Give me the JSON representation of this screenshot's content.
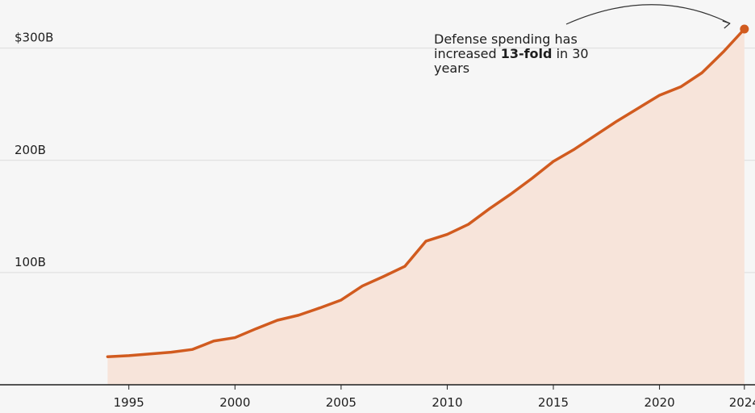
{
  "chart_data": {
    "type": "area",
    "title": "",
    "xlabel": "",
    "ylabel": "",
    "x": [
      1994,
      1995,
      1996,
      1997,
      1998,
      1999,
      2000,
      2001,
      2002,
      2003,
      2004,
      2005,
      2006,
      2007,
      2008,
      2009,
      2010,
      2011,
      2012,
      2013,
      2014,
      2015,
      2016,
      2017,
      2018,
      2019,
      2020,
      2021,
      2022,
      2023,
      2024
    ],
    "series": [
      {
        "name": "",
        "values": [
          25,
          26,
          27.5,
          29,
          31.5,
          39,
          42,
          50,
          57.5,
          62,
          68.5,
          75.5,
          88,
          96.5,
          105.5,
          128,
          134,
          143,
          157,
          170,
          184,
          199,
          210,
          222.5,
          235,
          246.5,
          258,
          265.5,
          278,
          296.5,
          317
        ]
      }
    ],
    "xlim": [
      1988.93,
      2024.5
    ],
    "ylim": [
      0,
      317
    ],
    "x_ticks": [
      1995,
      2000,
      2005,
      2010,
      2015,
      2020,
      2024
    ],
    "x_tick_labels": [
      "1995",
      "2000",
      "2005",
      "2010",
      "2015",
      "2020",
      "2024"
    ],
    "y_ticks": [
      100,
      200,
      300
    ],
    "y_tick_labels": [
      "100B",
      "200B",
      "$300B"
    ],
    "grid": true,
    "legend": "none",
    "annotation": {
      "text_before": "Defense spending has increased ",
      "text_bold": "13-fold",
      "text_after": " in 30 years"
    },
    "colors": {
      "line": "#d15b1f",
      "area": "#f7e4da",
      "grid": "#dcdcdc",
      "axis": "#1e1e1e",
      "text": "#1e1e1e",
      "background": "#f6f6f6"
    }
  }
}
